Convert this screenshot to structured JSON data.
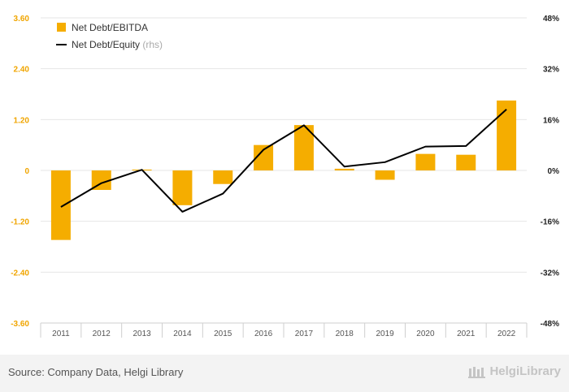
{
  "chart_data": {
    "type": "bar+line",
    "categories": [
      "2011",
      "2012",
      "2013",
      "2014",
      "2015",
      "2016",
      "2017",
      "2018",
      "2019",
      "2020",
      "2021",
      "2022"
    ],
    "series": [
      {
        "name": "Net Debt/EBITDA",
        "type": "bar",
        "axis": "left",
        "color": "#f5ad00",
        "values": [
          -1.64,
          -0.46,
          0.02,
          -0.82,
          -0.32,
          0.6,
          1.07,
          0.04,
          -0.22,
          0.39,
          0.37,
          1.65
        ]
      },
      {
        "name": "Net Debt/Equity",
        "suffix": " (rhs)",
        "type": "line",
        "axis": "right",
        "color": "#000000",
        "values": [
          -11.5,
          -4.0,
          0.2,
          -13.0,
          -7.3,
          6.5,
          14.2,
          1.2,
          2.6,
          7.5,
          7.7,
          19.2
        ]
      }
    ],
    "left_axis": {
      "ticks": [
        "3.60",
        "2.40",
        "1.20",
        "0",
        "-1.20",
        "-2.40",
        "-3.60"
      ],
      "range": [
        -3.6,
        3.6
      ]
    },
    "right_axis": {
      "ticks": [
        "48%",
        "32%",
        "16%",
        "0%",
        "-16%",
        "-32%",
        "-48%"
      ],
      "range": [
        -48,
        48
      ]
    }
  },
  "footer": {
    "source": "Source: Company Data, Helgi Library",
    "brand": "HelgiLibrary"
  },
  "colors": {
    "bar": "#f5ad00",
    "line": "#000000",
    "left_tick": "#f0a500",
    "grid": "#e6e6e6"
  }
}
